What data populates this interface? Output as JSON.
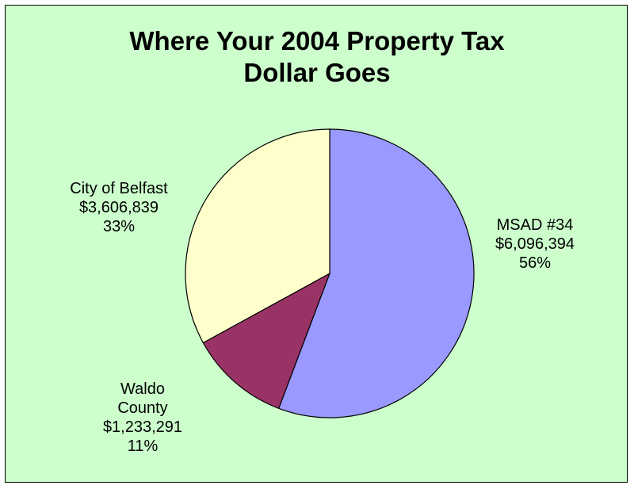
{
  "colors": {
    "background": "#ccffcc",
    "border": "#000000",
    "outline": "#000000"
  },
  "chart_data": {
    "type": "pie",
    "title": "Where Your 2004 Property Tax Dollar Goes",
    "title_lines": [
      "Where Your 2004 Property Tax",
      "Dollar Goes"
    ],
    "start_angle_deg": 0,
    "direction": "clockwise",
    "slices": [
      {
        "label_lines": [
          "MSAD #34"
        ],
        "amount": "$6,096,394",
        "percent_label": "56%",
        "value": 6096394,
        "color": "#9999ff"
      },
      {
        "label_lines": [
          "Waldo",
          "County"
        ],
        "amount": "$1,233,291",
        "percent_label": "11%",
        "value": 1233291,
        "color": "#993366"
      },
      {
        "label_lines": [
          "City of Belfast"
        ],
        "amount": "$3,606,839",
        "percent_label": "33%",
        "value": 3606839,
        "color": "#ffffcc"
      }
    ]
  }
}
